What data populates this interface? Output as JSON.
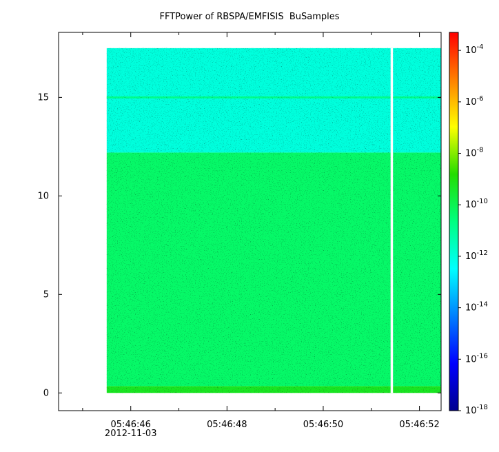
{
  "chart_data": {
    "type": "heatmap",
    "title": "FFTPower of RBSPA/EMFISIS  BuSamples",
    "xlabel": "",
    "ylabel": "",
    "x_ticks": [
      {
        "t": 46,
        "label": "05:46:46",
        "sublabel": "2012-11-03"
      },
      {
        "t": 48,
        "label": "05:46:48",
        "sublabel": ""
      },
      {
        "t": 50,
        "label": "05:46:50",
        "sublabel": ""
      },
      {
        "t": 52,
        "label": "05:46:52",
        "sublabel": ""
      }
    ],
    "x_minor_ticks": [
      45,
      47,
      49,
      51
    ],
    "xlim_seconds": [
      44.5,
      52.45
    ],
    "y_ticks": [
      0,
      5,
      10,
      15
    ],
    "ylim": [
      -0.9,
      18.3
    ],
    "data_extent": {
      "t_start": 45.5,
      "t_end": 52.45,
      "f_min": 0,
      "f_max": 17.5
    },
    "data_gap": {
      "t_start": 51.4,
      "t_end": 51.45
    },
    "bands": [
      {
        "f_from": 0,
        "f_to": 0.35,
        "log_power": -9.3
      },
      {
        "f_from": 0.35,
        "f_to": 12.2,
        "log_power": -10.3
      },
      {
        "f_from": 12.2,
        "f_to": 17.5,
        "log_power": -12.0
      },
      {
        "f_from": 14.95,
        "f_to": 15.05,
        "log_power": -10.8
      }
    ],
    "colorbar": {
      "scale": "log",
      "range_exponent": [
        -18,
        -3.3
      ],
      "tick_exponents": [
        -18,
        -16,
        -14,
        -12,
        -10,
        -8,
        -6,
        -4
      ],
      "tick_base": "10"
    }
  }
}
